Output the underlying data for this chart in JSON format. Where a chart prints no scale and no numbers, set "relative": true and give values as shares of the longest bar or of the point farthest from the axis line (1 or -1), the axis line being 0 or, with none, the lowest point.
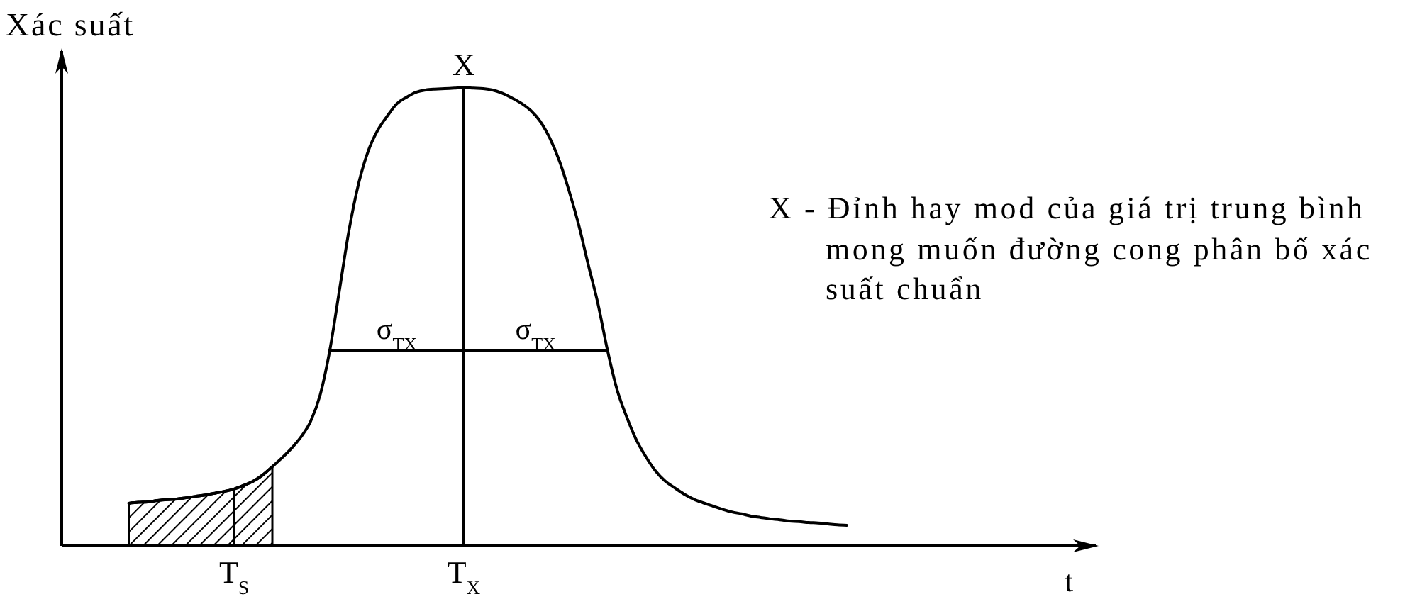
{
  "chart_data": {
    "type": "line",
    "relative": true,
    "ylabel": "Xác suất",
    "xlabel": "t",
    "categories": [
      null,
      null,
      null,
      null,
      null,
      null,
      null,
      null,
      null,
      null,
      null,
      null,
      null,
      null,
      null,
      null,
      null,
      null,
      "T$_{S}$",
      null,
      null,
      null,
      null,
      null,
      null,
      null,
      null,
      null,
      null,
      null,
      null,
      null,
      null,
      null,
      null,
      null,
      null,
      null,
      null,
      null,
      null,
      null,
      "T$_{X}$",
      null,
      null,
      null,
      null,
      null,
      null,
      null,
      null,
      null,
      null,
      null,
      null,
      null,
      null,
      null,
      null,
      null,
      null,
      null,
      null,
      null,
      null,
      null,
      null,
      null,
      null,
      null,
      null,
      null,
      null,
      null,
      null,
      null,
      null,
      null,
      null,
      null,
      null,
      null,
      null,
      null,
      null,
      null,
      null,
      null,
      null,
      null,
      null,
      null,
      null,
      null,
      null,
      null,
      null,
      null,
      null,
      null,
      null,
      null,
      null,
      null,
      null,
      null,
      null,
      null,
      null
    ],
    "series": [
      {
        "type": "line",
        "color": "#000000",
        "values": [
          null,
          null,
          null,
          null,
          null,
          null,
          null,
          0.093,
          0.095,
          0.096,
          0.099,
          0.101,
          0.102,
          0.105,
          0.108,
          0.111,
          0.115,
          0.119,
          0.124,
          0.132,
          0.141,
          0.155,
          0.173,
          0.192,
          0.213,
          0.238,
          0.272,
          0.33,
          0.427,
          0.557,
          0.688,
          0.79,
          0.861,
          0.907,
          0.938,
          0.965,
          0.979,
          0.99,
          0.995,
          0.997,
          0.998,
          0.999,
          1,
          0.999,
          0.998,
          0.995,
          0.988,
          0.978,
          0.966,
          0.95,
          0.926,
          0.889,
          0.839,
          0.774,
          0.7,
          0.613,
          0.529,
          0.427,
          0.341,
          0.282,
          0.232,
          0.195,
          0.164,
          0.142,
          0.127,
          0.113,
          0.102,
          0.094,
          0.087,
          0.08,
          0.074,
          0.07,
          0.065,
          0.062,
          0.059,
          0.057,
          0.054,
          0.053,
          0.051,
          0.05,
          0.048,
          0.046,
          0.045,
          null,
          null,
          null,
          null,
          null,
          null,
          null,
          null,
          null,
          null,
          null,
          null,
          null,
          null,
          null,
          null,
          null,
          null,
          null,
          null,
          null,
          null,
          null,
          null,
          null,
          null
        ]
      },
      {
        "type": "area",
        "color": "#000000",
        "values": [
          null,
          null,
          null,
          null,
          null,
          null,
          null,
          0.093,
          0.095,
          0.096,
          0.099,
          0.101,
          0.102,
          0.105,
          0.108,
          0.111,
          0.115,
          0.119,
          0.124,
          null,
          null,
          null,
          null,
          null,
          null,
          null,
          null,
          null,
          null,
          null,
          null,
          null,
          null,
          null,
          null,
          null,
          null,
          null,
          null,
          null,
          null,
          null,
          null,
          null,
          null,
          null,
          null,
          null,
          null,
          null,
          null,
          null,
          null,
          null,
          null,
          null,
          null,
          null,
          null,
          null,
          null,
          null,
          null,
          null,
          null,
          null,
          null,
          null,
          null,
          null,
          null,
          null,
          null,
          null,
          null,
          null,
          null,
          null,
          null,
          null,
          null,
          null,
          null,
          null,
          null,
          null,
          null,
          null,
          null,
          null,
          null,
          null,
          null,
          null,
          null,
          null,
          null,
          null,
          null,
          null,
          null,
          null,
          null,
          null,
          null,
          null,
          null,
          null,
          null
        ]
      },
      {
        "type": "area",
        "color": "#000000",
        "values": [
          null,
          null,
          null,
          null,
          null,
          null,
          null,
          null,
          null,
          null,
          null,
          null,
          null,
          null,
          null,
          null,
          null,
          null,
          0.124,
          0.132,
          0.141,
          0.155,
          0.173,
          null,
          null,
          null,
          null,
          null,
          null,
          null,
          null,
          null,
          null,
          null,
          null,
          null,
          null,
          null,
          null,
          null,
          null,
          null,
          null,
          null,
          null,
          null,
          null,
          null,
          null,
          null,
          null,
          null,
          null,
          null,
          null,
          null,
          null,
          null,
          null,
          null,
          null,
          null,
          null,
          null,
          null,
          null,
          null,
          null,
          null,
          null,
          null,
          null,
          null,
          null,
          null,
          null,
          null,
          null,
          null,
          null,
          null,
          null,
          null,
          null,
          null,
          null,
          null,
          null,
          null,
          null,
          null,
          null,
          null,
          null,
          null,
          null,
          null,
          null,
          null,
          null,
          null,
          null,
          null,
          null,
          null,
          null,
          null,
          null,
          null
        ]
      },
      {
        "type": "line",
        "color": "#000000",
        "values": [
          null,
          null,
          null,
          null,
          null,
          null,
          null,
          null,
          null,
          null,
          null,
          null,
          null,
          null,
          null,
          null,
          null,
          null,
          null,
          null,
          null,
          null,
          null,
          null,
          null,
          null,
          null,
          null,
          0.427,
          0.427,
          0.427,
          0.427,
          0.427,
          0.427,
          0.427,
          0.427,
          0.427,
          0.427,
          0.427,
          0.427,
          0.427,
          0.427,
          0.427,
          0.427,
          0.427,
          0.427,
          0.427,
          0.427,
          0.427,
          0.427,
          0.427,
          0.427,
          0.427,
          0.427,
          0.427,
          0.427,
          0.427,
          0.427,
          null,
          null,
          null,
          null,
          null,
          null,
          null,
          null,
          null,
          null,
          null,
          null,
          null,
          null,
          null,
          null,
          null,
          null,
          null,
          null,
          null,
          null,
          null,
          null,
          null,
          null,
          null,
          null,
          null,
          null,
          null,
          null,
          null,
          null,
          null,
          null,
          null,
          null,
          null,
          null,
          null,
          null,
          null,
          null,
          null,
          null,
          null,
          null,
          null,
          null,
          null
        ]
      }
    ],
    "ref_lines": [
      {
        "axis": "x",
        "value": "T$_{X}$",
        "label": "X",
        "color": "#000000"
      }
    ],
    "annotations": [
      {
        "text": "σ$_{TX}$",
        "y": 0.427
      },
      {
        "text": "σ$_{TX}$",
        "y": 0.427
      },
      "X - Đỉnh hay mod của giá trị trung bình mong muốn đường cong phân bố xác suất chuẩn"
    ]
  }
}
